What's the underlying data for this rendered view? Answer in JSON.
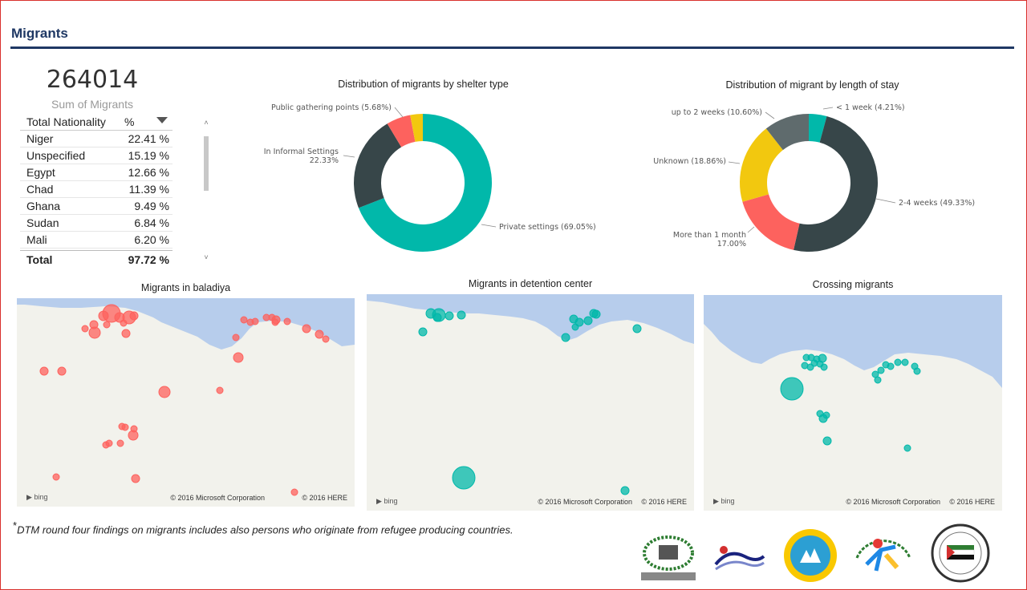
{
  "page": {
    "title": "Migrants"
  },
  "kpi": {
    "value": "264014",
    "label": "Sum of Migrants"
  },
  "nationality_table": {
    "col1": "Total Nationality",
    "col2": "%",
    "rows": [
      {
        "name": "Niger",
        "pct": "22.41 %"
      },
      {
        "name": "Unspecified",
        "pct": "15.19 %"
      },
      {
        "name": "Egypt",
        "pct": "12.66 %"
      },
      {
        "name": "Chad",
        "pct": "11.39 %"
      },
      {
        "name": "Ghana",
        "pct": "9.49 %"
      },
      {
        "name": "Sudan",
        "pct": "6.84 %"
      },
      {
        "name": "Mali",
        "pct": "6.20 %"
      }
    ],
    "total_label": "Total",
    "total_value": "97.72 %"
  },
  "chart_data": [
    {
      "type": "pie",
      "title": "Distribution of migrants by shelter type",
      "slices": [
        {
          "label": "Private settings",
          "value": 69.05,
          "text": "Private settings (69.05%)",
          "color": "#01b8aa"
        },
        {
          "label": "In Informal Settings",
          "value": 22.33,
          "text": "In Informal Settings",
          "text2": "22.33%",
          "color": "#374649"
        },
        {
          "label": "Public gathering points",
          "value": 5.68,
          "text": "Public gathering points (5.68%)",
          "color": "#fd625e"
        },
        {
          "label": "",
          "value": 2.94,
          "text": "",
          "color": "#f2c80f"
        }
      ]
    },
    {
      "type": "pie",
      "title": "Distribution of migrant by length of stay",
      "slices": [
        {
          "label": "< 1 week",
          "value": 4.21,
          "text": "< 1 week (4.21%)",
          "color": "#01b8aa"
        },
        {
          "label": "2-4 weeks",
          "value": 49.33,
          "text": "2-4 weeks (49.33%)",
          "color": "#374649"
        },
        {
          "label": "More than 1 month",
          "value": 17.0,
          "text": "More than 1 month",
          "text2": "17.00%",
          "color": "#fd625e"
        },
        {
          "label": "Unknown",
          "value": 18.86,
          "text": "Unknown (18.86%)",
          "color": "#f2c80f"
        },
        {
          "label": "up to 2 weeks",
          "value": 10.6,
          "text": "up to 2 weeks (10.60%)",
          "color": "#5f6b6d"
        }
      ]
    }
  ],
  "maps": [
    {
      "title": "Migrants in baladiya",
      "color": "#fd625e",
      "bing": "bing",
      "copy1": "© 2016 Microsoft Corporation",
      "copy2": "© 2016 HERE"
    },
    {
      "title": "Migrants in detention center",
      "color": "#01b8aa",
      "bing": "bing",
      "copy1": "© 2016 Microsoft Corporation",
      "copy2": "© 2016 HERE"
    },
    {
      "title": "Crossing migrants",
      "color": "#01b8aa",
      "bing": "bing",
      "copy1": "© 2016 Microsoft Corporation",
      "copy2": "© 2016 HERE"
    }
  ],
  "footnote": {
    "marker": "*",
    "text": "DTM round four findings on migrants includes also persons who originate from refugee producing countries."
  }
}
